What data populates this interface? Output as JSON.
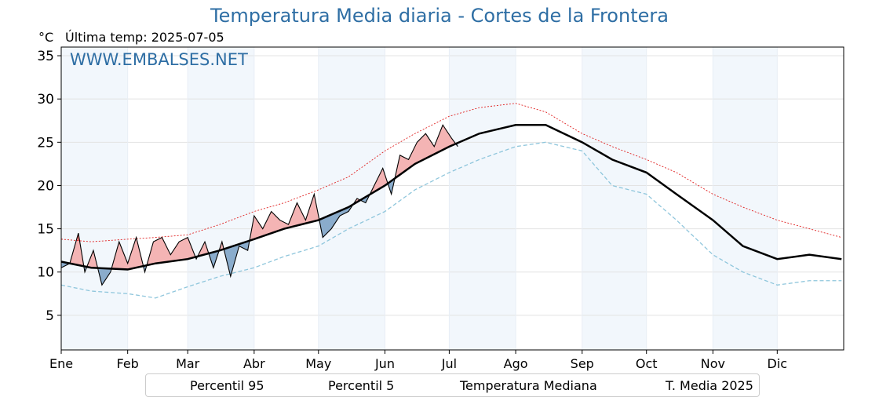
{
  "title": "Temperatura Media diaria - Cortes de la Frontera",
  "unit_label": "°C",
  "last_temp_label": "Última temp: 2025-07-05",
  "watermark": "WWW.EMBALSES.NET",
  "colors": {
    "p95": "#e02020",
    "p5": "#8fc6dc",
    "median": "#000000",
    "current": "#000000",
    "above_fill": "#f4b4b4",
    "above_strong": "#ef6e6e",
    "below_fill": "#8aaccc",
    "band": "#f2f7fc",
    "title": "#2e6ea4"
  },
  "legend": {
    "p95": "Percentil 95",
    "p5": "Percentil 5",
    "median": "Temperatura Mediana",
    "current": "T. Media 2025"
  },
  "chart_data": {
    "type": "line",
    "ylim": [
      1,
      36
    ],
    "yticks": [
      5,
      10,
      15,
      20,
      25,
      30,
      35
    ],
    "month_labels": [
      "Ene",
      "Feb",
      "Mar",
      "Abr",
      "May",
      "Jun",
      "Jul",
      "Ago",
      "Sep",
      "Oct",
      "Nov",
      "Dic"
    ],
    "month_start_days": [
      1,
      32,
      60,
      91,
      121,
      152,
      182,
      213,
      244,
      274,
      305,
      335
    ],
    "grid": true,
    "legend_position": "bottom",
    "series": [
      {
        "name": "Percentil 95",
        "key": "p95",
        "x": [
          1,
          15,
          32,
          45,
          60,
          75,
          91,
          105,
          121,
          135,
          152,
          166,
          182,
          196,
          213,
          227,
          244,
          258,
          274,
          288,
          305,
          319,
          335,
          350,
          365
        ],
        "y": [
          13.8,
          13.5,
          13.8,
          14.0,
          14.3,
          15.5,
          17.0,
          18.0,
          19.5,
          21.0,
          24.0,
          26.0,
          28.0,
          29.0,
          29.5,
          28.5,
          26.0,
          24.5,
          23.0,
          21.5,
          19.0,
          17.5,
          16.0,
          15.0,
          14.0
        ]
      },
      {
        "name": "Percentil 5",
        "key": "p5",
        "x": [
          1,
          15,
          32,
          45,
          60,
          75,
          91,
          105,
          121,
          135,
          152,
          166,
          182,
          196,
          213,
          227,
          244,
          258,
          274,
          288,
          305,
          319,
          335,
          350,
          365
        ],
        "y": [
          8.5,
          7.8,
          7.5,
          7.0,
          8.3,
          9.5,
          10.5,
          11.8,
          13.0,
          15.0,
          17.0,
          19.5,
          21.5,
          23.0,
          24.5,
          25.0,
          24.0,
          20.0,
          19.0,
          16.0,
          12.0,
          10.0,
          8.5,
          9.0,
          9.0
        ]
      },
      {
        "name": "Temperatura Mediana",
        "key": "median",
        "x": [
          1,
          15,
          32,
          45,
          60,
          75,
          91,
          105,
          121,
          135,
          152,
          166,
          182,
          196,
          213,
          227,
          244,
          258,
          274,
          288,
          305,
          319,
          335,
          350,
          365
        ],
        "y": [
          11.2,
          10.5,
          10.3,
          11.0,
          11.5,
          12.5,
          13.8,
          15.0,
          16.0,
          17.5,
          20.0,
          22.5,
          24.5,
          26.0,
          27.0,
          27.0,
          25.0,
          23.0,
          21.5,
          19.0,
          16.0,
          13.0,
          11.5,
          12.0,
          11.5
        ]
      },
      {
        "name": "T. Media 2025",
        "key": "current",
        "x": [
          1,
          5,
          9,
          12,
          16,
          20,
          24,
          28,
          32,
          36,
          40,
          44,
          48,
          52,
          56,
          60,
          64,
          68,
          72,
          76,
          80,
          84,
          88,
          91,
          95,
          99,
          103,
          107,
          111,
          115,
          119,
          123,
          127,
          131,
          135,
          139,
          143,
          147,
          151,
          155,
          159,
          163,
          167,
          171,
          175,
          179,
          183,
          186
        ],
        "y": [
          10.5,
          11.0,
          14.5,
          10.0,
          12.5,
          8.5,
          10.0,
          13.5,
          11.0,
          14.0,
          10.0,
          13.5,
          14.0,
          12.0,
          13.5,
          14.0,
          11.5,
          13.5,
          10.5,
          13.5,
          9.5,
          13.0,
          12.5,
          16.5,
          15.0,
          17.0,
          16.0,
          15.5,
          18.0,
          16.0,
          19.0,
          14.0,
          15.0,
          16.5,
          17.0,
          18.5,
          18.0,
          20.0,
          22.0,
          19.0,
          23.5,
          23.0,
          25.0,
          26.0,
          24.5,
          27.0,
          25.5,
          24.5
        ]
      }
    ]
  }
}
